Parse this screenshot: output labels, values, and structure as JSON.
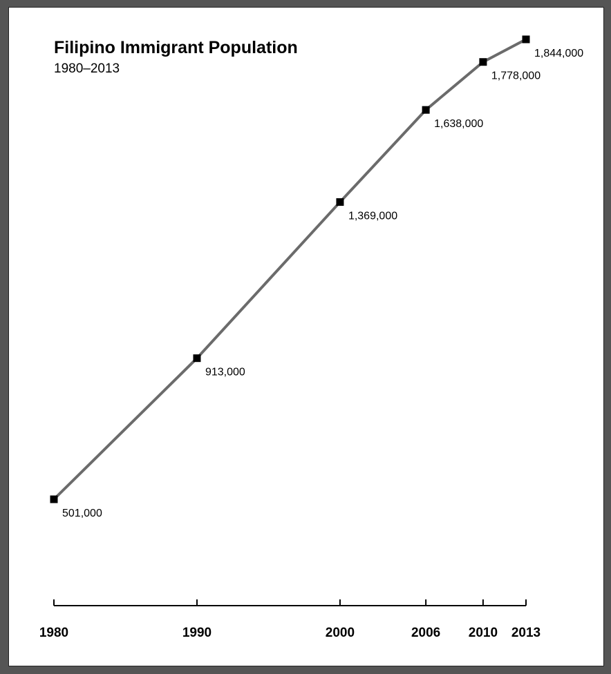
{
  "chart_data": {
    "type": "line",
    "title": "Filipino Immigrant Population",
    "subtitle": "1980–2013",
    "xlabel": "",
    "ylabel": "",
    "x": [
      1980,
      1990,
      2000,
      2006,
      2010,
      2013
    ],
    "x_tick_labels": [
      "1980",
      "1990",
      "2000",
      "2006",
      "2010",
      "2013"
    ],
    "series": [
      {
        "values": [
          501000,
          913000,
          1369000,
          1638000,
          1778000,
          1844000
        ],
        "point_labels": [
          "501,000",
          "913,000",
          "1,369,000",
          "1,638,000",
          "1,778,000",
          "1,844,000"
        ]
      }
    ],
    "xlim": [
      1980,
      2013
    ],
    "grid": false,
    "colors": {
      "line": "#6b6b6b",
      "marker": "#000000",
      "axis": "#000000",
      "background": "#ffffff",
      "frame": "#555555"
    }
  }
}
